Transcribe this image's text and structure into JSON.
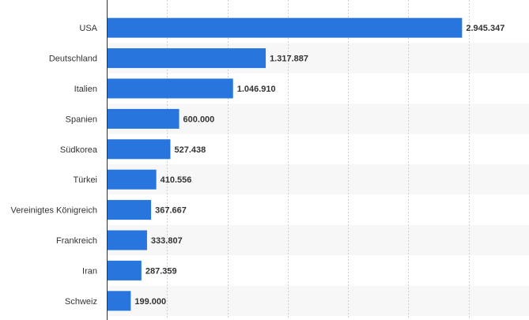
{
  "chart_data": {
    "type": "bar",
    "orientation": "horizontal",
    "categories": [
      "USA",
      "Deutschland",
      "Italien",
      "Spanien",
      "Südkorea",
      "Türkei",
      "Vereinigtes Königreich",
      "Frankreich",
      "Iran",
      "Schweiz"
    ],
    "values": [
      2945347,
      1317887,
      1046910,
      600000,
      527438,
      410556,
      367667,
      333807,
      287359,
      199000
    ],
    "value_labels": [
      "2.945.347",
      "1.317.887",
      "1.046.910",
      "600.000",
      "527.438",
      "410.556",
      "367.667",
      "333.807",
      "287.359",
      "199.000"
    ],
    "title": "",
    "xlabel": "",
    "ylabel": "",
    "xlim": [
      0,
      3500000
    ],
    "grid": true,
    "bar_color": "#2876dd",
    "stripe_color": "#f7f7f7"
  }
}
